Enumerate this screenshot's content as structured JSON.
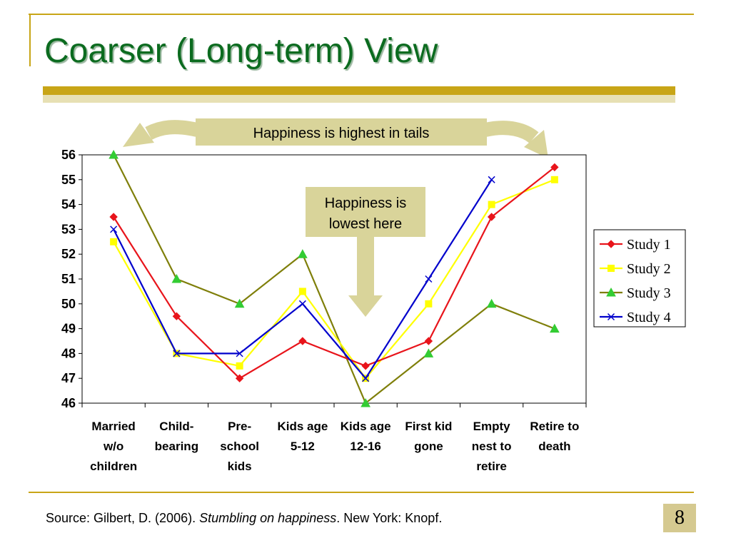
{
  "slide": {
    "title": "Coarser (Long-term) View",
    "footer": {
      "source_prefix": "Source: Gilbert, D. (2006). ",
      "source_title": "Stumbling on happiness",
      "source_suffix": ". New York: Knopf."
    },
    "page_number": "8",
    "colors": {
      "title": "#0b6b1f",
      "accent": "#c8a517",
      "callout_fill": "#d9d49a"
    }
  },
  "callouts": {
    "top": "Happiness is highest in tails",
    "middle_line1": "Happiness is",
    "middle_line2": "lowest here"
  },
  "chart_data": {
    "type": "line",
    "categories": [
      [
        "Married",
        "w/o",
        "children"
      ],
      [
        "Child-",
        "bearing"
      ],
      [
        "Pre-",
        "school",
        "kids"
      ],
      [
        "Kids age",
        "5-12"
      ],
      [
        "Kids age",
        "12-16"
      ],
      [
        "First kid",
        "gone"
      ],
      [
        "Empty",
        "nest to",
        "retire"
      ],
      [
        "Retire to",
        "death"
      ]
    ],
    "ylim": [
      46,
      56
    ],
    "yticks": [
      46,
      47,
      48,
      49,
      50,
      51,
      52,
      53,
      54,
      55,
      56
    ],
    "grid": false,
    "legend_position": "right",
    "series": [
      {
        "name": "Study 1",
        "color": "#e8141b",
        "marker": "diamond",
        "values": [
          53.5,
          49.5,
          47,
          48.5,
          47.5,
          48.5,
          53.5,
          55.5
        ]
      },
      {
        "name": "Study 2",
        "color": "#ffff00",
        "marker": "square",
        "values": [
          52.5,
          48,
          47.5,
          50.5,
          47,
          50,
          54,
          55
        ]
      },
      {
        "name": "Study 3",
        "color": "#7f7f0a",
        "marker": "triangle",
        "values": [
          56,
          51,
          50,
          52,
          46,
          48,
          50,
          49
        ]
      },
      {
        "name": "Study 4",
        "color": "#0000cc",
        "marker": "x",
        "values": [
          53,
          48,
          48,
          50,
          47,
          51,
          55,
          null
        ]
      }
    ]
  }
}
